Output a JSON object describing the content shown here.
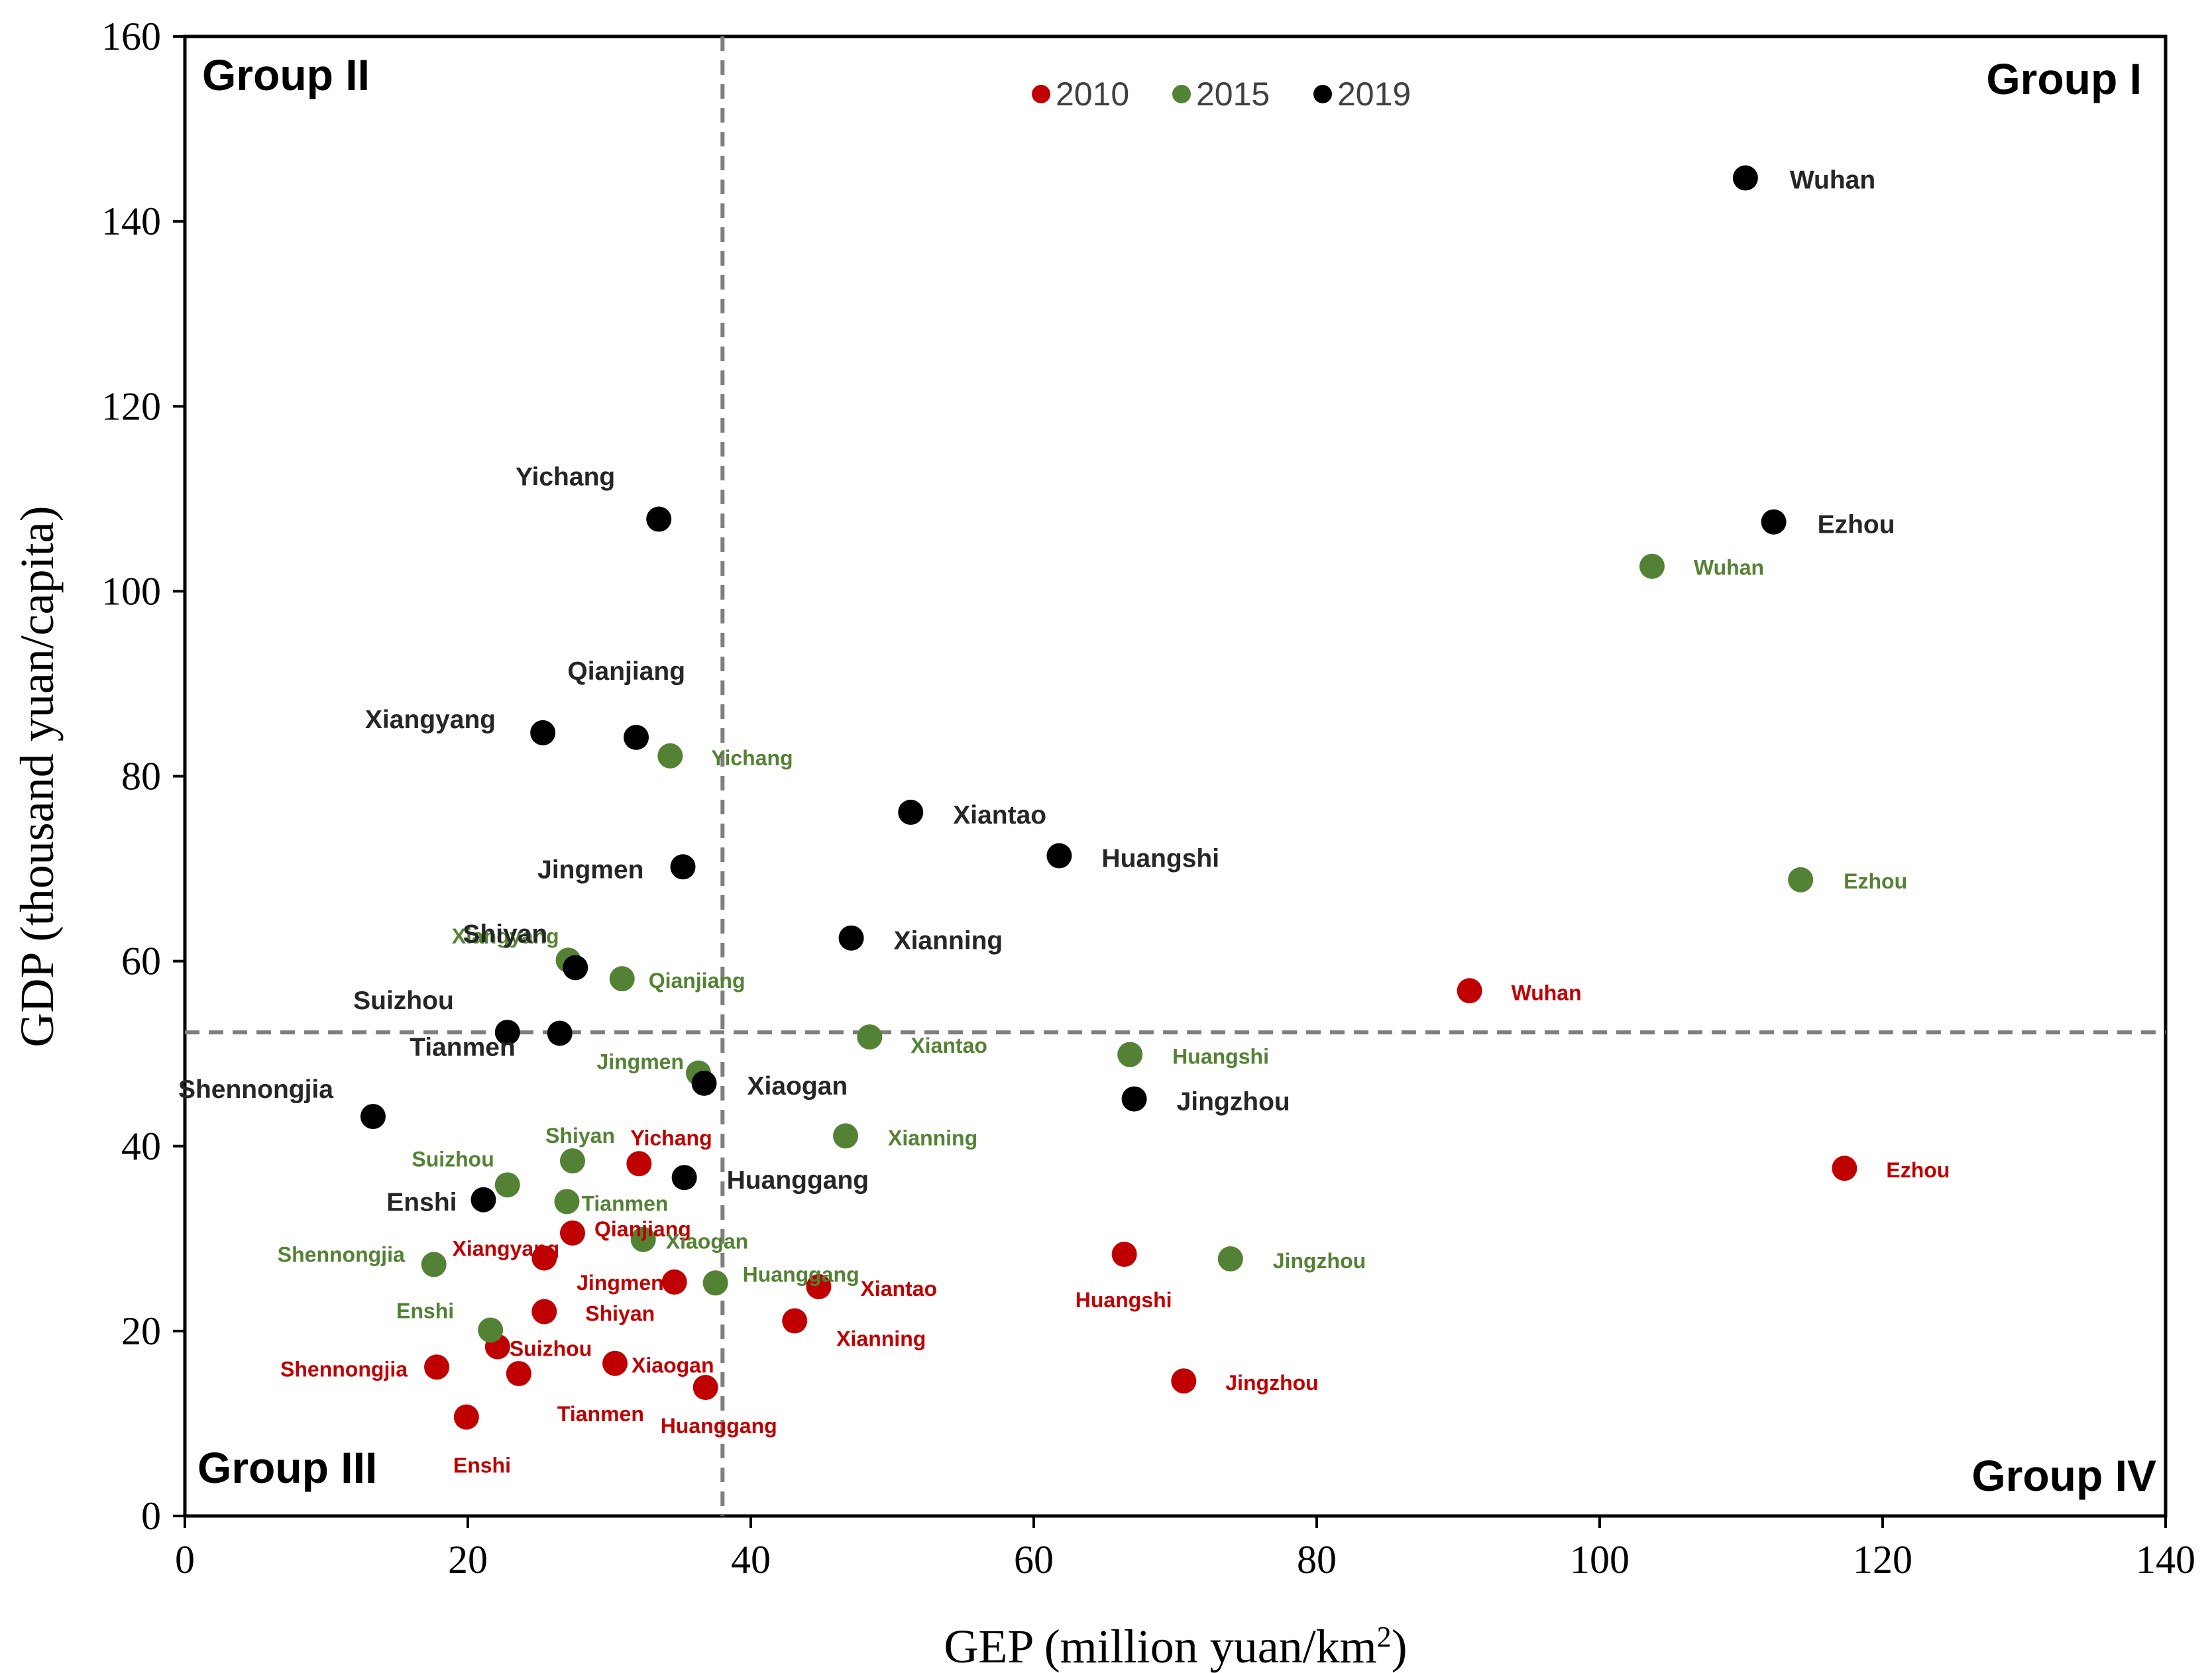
{
  "chart_data": {
    "type": "scatter",
    "xlabel": "GEP (million yuan/km",
    "xlabel_sup": "2",
    "xlabel_end": ")",
    "ylabel": "GDP (thousand yuan/capita)",
    "xlim": [
      0,
      140
    ],
    "ylim": [
      0,
      160
    ],
    "xticks": [
      0,
      20,
      40,
      60,
      80,
      100,
      120,
      140
    ],
    "yticks": [
      0,
      20,
      40,
      60,
      80,
      100,
      120,
      140,
      160
    ],
    "xtick_labels": [
      "0",
      "20",
      "40",
      "60",
      "80",
      "100",
      "120",
      "140"
    ],
    "ytick_labels": [
      "0",
      "20",
      "40",
      "60",
      "80",
      "100",
      "120",
      "140",
      "160"
    ],
    "thresholds": {
      "x": 38,
      "y": 52.3
    },
    "groups": [
      "Group I",
      "Group II",
      "Group III",
      "Group IV"
    ],
    "legend": [
      "2010",
      "2015",
      "2019"
    ],
    "colors": {
      "2010": "#c00000",
      "2015": "#548235",
      "2019": "#000000",
      "label2019": "#262626",
      "divider": "#7f7f7f"
    },
    "series": [
      {
        "name": "2010",
        "points": [
          {
            "city": "Wuhan",
            "x": 90.8,
            "y": 56.8
          },
          {
            "city": "Ezhou",
            "x": 117.3,
            "y": 37.6
          },
          {
            "city": "Huangshi",
            "x": 66.4,
            "y": 28.3
          },
          {
            "city": "Jingzhou",
            "x": 70.6,
            "y": 14.6
          },
          {
            "city": "Xiantao",
            "x": 44.8,
            "y": 24.8
          },
          {
            "city": "Xianning",
            "x": 43.1,
            "y": 21.1
          },
          {
            "city": "Yichang",
            "x": 32.1,
            "y": 38.1
          },
          {
            "city": "Qianjiang",
            "x": 27.4,
            "y": 30.6
          },
          {
            "city": "Xiangyang",
            "x": 25.4,
            "y": 27.9
          },
          {
            "city": "Jingmen",
            "x": 34.6,
            "y": 25.3
          },
          {
            "city": "Shiyan",
            "x": 25.4,
            "y": 22.1
          },
          {
            "city": "Suizhou",
            "x": 22.1,
            "y": 18.3
          },
          {
            "city": "Shennongjia",
            "x": 17.8,
            "y": 16.1
          },
          {
            "city": "Tianmen",
            "x": 23.6,
            "y": 15.4
          },
          {
            "city": "Xiaogan",
            "x": 30.4,
            "y": 16.5
          },
          {
            "city": "Huanggang",
            "x": 36.8,
            "y": 13.9
          },
          {
            "city": "Enshi",
            "x": 19.9,
            "y": 10.7
          }
        ]
      },
      {
        "name": "2015",
        "points": [
          {
            "city": "Wuhan",
            "x": 103.7,
            "y": 102.7
          },
          {
            "city": "Ezhou",
            "x": 114.2,
            "y": 68.8
          },
          {
            "city": "Huangshi",
            "x": 66.8,
            "y": 49.9
          },
          {
            "city": "Jingzhou",
            "x": 73.9,
            "y": 27.8
          },
          {
            "city": "Xiantao",
            "x": 48.4,
            "y": 51.8
          },
          {
            "city": "Xianning",
            "x": 46.7,
            "y": 41.1
          },
          {
            "city": "Yichang",
            "x": 34.3,
            "y": 82.2
          },
          {
            "city": "Xiangyang",
            "x": 27.1,
            "y": 60.1
          },
          {
            "city": "Qianjiang",
            "x": 30.9,
            "y": 58.1
          },
          {
            "city": "Jingmen",
            "x": 36.3,
            "y": 47.9
          },
          {
            "city": "Shiyan",
            "x": 27.4,
            "y": 38.4
          },
          {
            "city": "Suizhou",
            "x": 22.8,
            "y": 35.8
          },
          {
            "city": "Tianmen",
            "x": 27.0,
            "y": 34.0
          },
          {
            "city": "Xiaogan",
            "x": 32.4,
            "y": 29.9
          },
          {
            "city": "Huanggang",
            "x": 37.5,
            "y": 25.2
          },
          {
            "city": "Shennongjia",
            "x": 17.6,
            "y": 27.2
          },
          {
            "city": "Enshi",
            "x": 21.6,
            "y": 20.1
          }
        ]
      },
      {
        "name": "2019",
        "points": [
          {
            "city": "Wuhan",
            "x": 110.3,
            "y": 144.7
          },
          {
            "city": "Ezhou",
            "x": 112.3,
            "y": 107.5
          },
          {
            "city": "Yichang",
            "x": 33.5,
            "y": 107.8
          },
          {
            "city": "Qianjiang",
            "x": 31.9,
            "y": 84.2
          },
          {
            "city": "Xiangyang",
            "x": 25.3,
            "y": 84.7
          },
          {
            "city": "Xiantao",
            "x": 51.3,
            "y": 76.1
          },
          {
            "city": "Huangshi",
            "x": 61.8,
            "y": 71.4
          },
          {
            "city": "Jingmen",
            "x": 35.2,
            "y": 70.2
          },
          {
            "city": "Xianning",
            "x": 47.1,
            "y": 62.5
          },
          {
            "city": "Shiyan",
            "x": 27.6,
            "y": 59.3
          },
          {
            "city": "Suizhou",
            "x": 22.8,
            "y": 52.3
          },
          {
            "city": "Tianmen",
            "x": 26.5,
            "y": 52.2
          },
          {
            "city": "Xiaogan",
            "x": 36.7,
            "y": 46.8
          },
          {
            "city": "Jingzhou",
            "x": 67.1,
            "y": 45.1
          },
          {
            "city": "Shennongjia",
            "x": 13.3,
            "y": 43.2
          },
          {
            "city": "Huanggang",
            "x": 35.3,
            "y": 36.6
          },
          {
            "city": "Enshi",
            "x": 21.1,
            "y": 34.2
          }
        ]
      }
    ]
  }
}
